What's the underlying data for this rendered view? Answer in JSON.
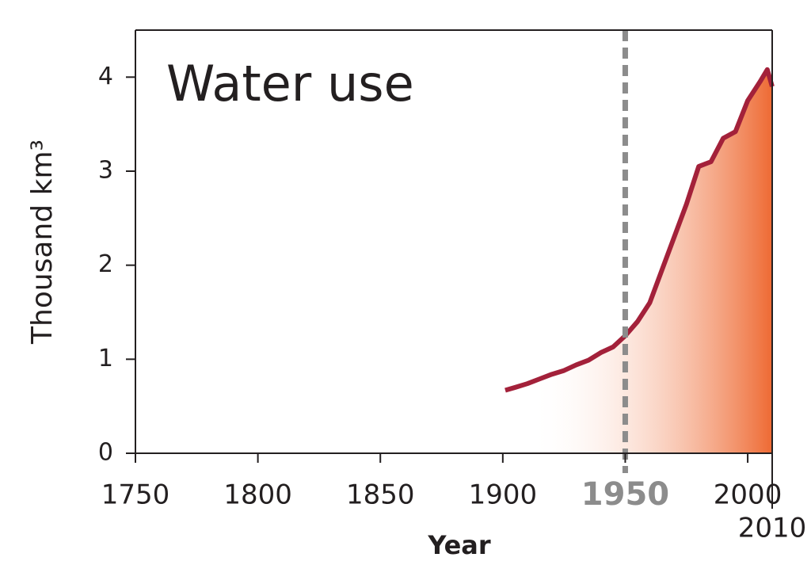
{
  "chart_data": {
    "type": "area",
    "title": "Water use",
    "xlabel": "Year",
    "ylabel": "Thousand km³",
    "x": [
      1901,
      1905,
      1910,
      1915,
      1920,
      1925,
      1930,
      1935,
      1940,
      1945,
      1950,
      1955,
      1960,
      1965,
      1970,
      1975,
      1980,
      1985,
      1990,
      1995,
      2000,
      2005,
      2008,
      2010
    ],
    "values": [
      0.67,
      0.7,
      0.74,
      0.79,
      0.84,
      0.88,
      0.94,
      0.99,
      1.07,
      1.13,
      1.25,
      1.4,
      1.6,
      1.95,
      2.3,
      2.65,
      3.05,
      3.1,
      3.35,
      3.42,
      3.75,
      3.95,
      4.08,
      3.9
    ],
    "line_color": "#a3213a",
    "fill_color": "#ee6a33",
    "xlim": [
      1750,
      2010
    ],
    "xticks": [
      1750,
      1800,
      1850,
      1900,
      1950,
      2000,
      2010
    ],
    "ylim": [
      0,
      4.5
    ],
    "yticks": [
      0,
      1,
      2,
      3,
      4
    ],
    "highlight_x": 1950,
    "highlight_color": "#8c8c8c"
  }
}
